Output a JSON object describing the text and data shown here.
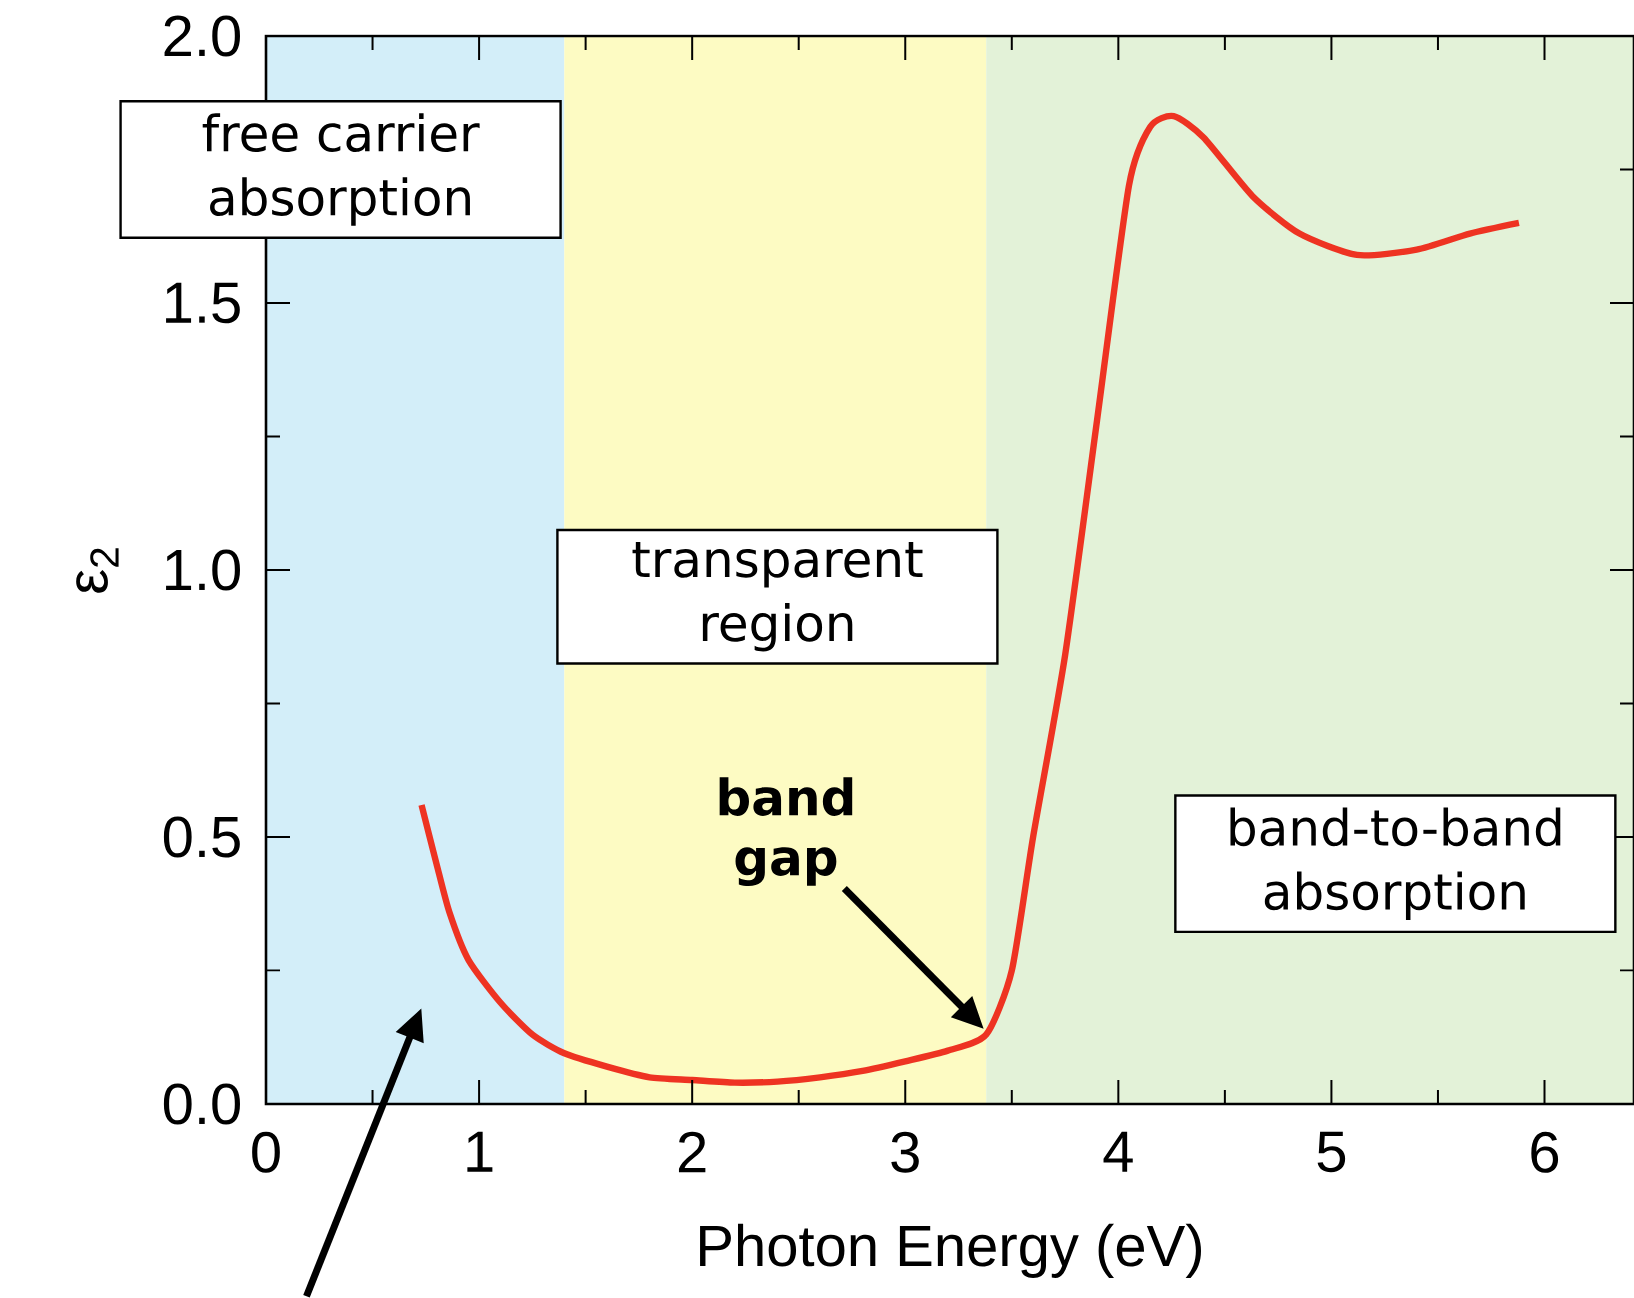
{
  "chart_data": {
    "type": "line",
    "xlabel": "Photon Energy (eV)",
    "ylabel": "ε$_{2}$",
    "xlim": [
      0,
      6.42
    ],
    "ylim": [
      0,
      2.0
    ],
    "xticks": [
      0,
      1,
      2,
      3,
      4,
      5,
      6
    ],
    "yticks": [
      {
        "value": 0,
        "label": "0.0"
      },
      {
        "value": 0.5,
        "label": "0.5"
      },
      {
        "value": 1,
        "label": "1.0"
      },
      {
        "value": 1.5,
        "label": "1.5"
      },
      {
        "value": 2,
        "label": "2.0"
      }
    ],
    "series": [
      {
        "color": "#ee3322",
        "x": [
          0.73,
          0.8,
          0.86,
          0.95,
          1.1,
          1.25,
          1.4,
          1.6,
          1.8,
          2.0,
          2.2,
          2.4,
          2.6,
          2.8,
          3.0,
          3.2,
          3.38,
          3.5,
          3.6,
          3.75,
          3.9,
          4.05,
          4.15,
          4.26,
          4.4,
          4.63,
          4.85,
          5.12,
          5.4,
          5.65,
          5.88
        ],
        "values": [
          0.56,
          0.45,
          0.36,
          0.27,
          0.19,
          0.13,
          0.095,
          0.07,
          0.05,
          0.045,
          0.04,
          0.042,
          0.05,
          0.062,
          0.08,
          0.1,
          0.13,
          0.25,
          0.5,
          0.84,
          1.28,
          1.72,
          1.83,
          1.85,
          1.81,
          1.7,
          1.63,
          1.59,
          1.6,
          1.63,
          1.65
        ]
      }
    ],
    "bands": [
      {
        "axis": "x",
        "from": 0,
        "to": 1.4,
        "label": "free carrier absorption",
        "color": "#d3eef9"
      },
      {
        "axis": "x",
        "from": 1.4,
        "to": 3.38,
        "label": "transparent region",
        "color": "#fdfbc3"
      },
      {
        "axis": "x",
        "from": 3.38,
        "to": 6.42,
        "label": "band-to-band absorption",
        "color": "#e3f2d8"
      }
    ],
    "annotations": [
      "**band gap**"
    ]
  }
}
